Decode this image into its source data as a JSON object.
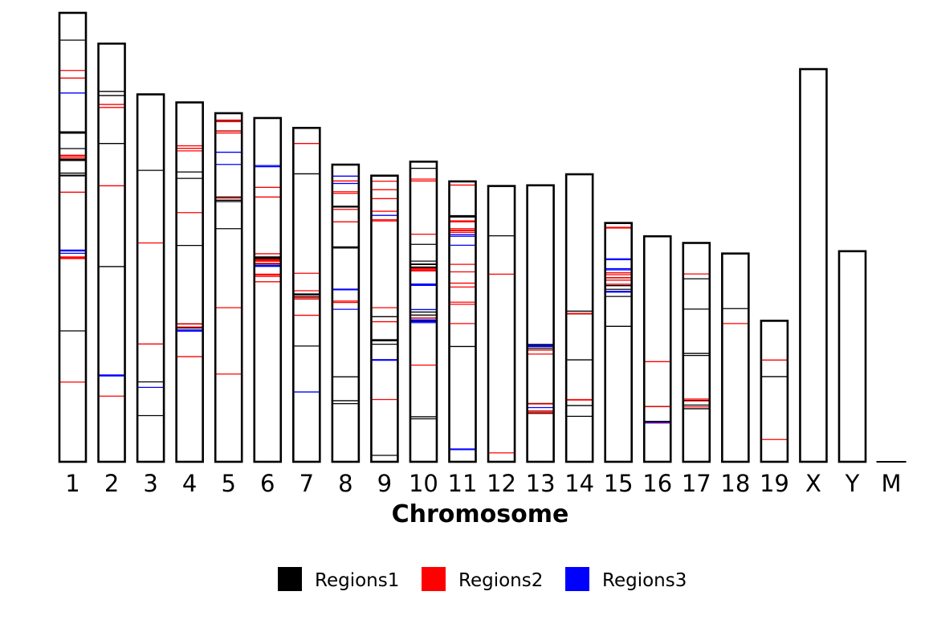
{
  "chart_data": {
    "type": "ideogram",
    "xlabel": "Chromosome",
    "ylabel": "",
    "title": "",
    "categories": [
      "1",
      "2",
      "3",
      "4",
      "5",
      "6",
      "7",
      "8",
      "9",
      "10",
      "11",
      "12",
      "13",
      "14",
      "15",
      "16",
      "17",
      "18",
      "19",
      "X",
      "Y",
      "M"
    ],
    "lengths_mb": [
      195.5,
      182.1,
      160.0,
      156.5,
      151.8,
      149.7,
      145.4,
      129.4,
      124.6,
      130.7,
      122.1,
      120.1,
      120.4,
      125.2,
      104.0,
      98.2,
      95.3,
      90.7,
      61.4,
      171.0,
      91.7,
      0.016
    ],
    "ylim": [
      0,
      195.5
    ],
    "legend_position": "bottom",
    "series": [
      {
        "name": "Regions1",
        "color": "#000000",
        "regions": {
          "1": [
            57,
            124.5,
            124.8,
            125.7,
            131.2,
            131.5,
            131.7,
            136.4,
            143.1,
            143.4,
            143.7,
            183.6
          ],
          "2": [
            85,
            138.6,
            159.5,
            161.3
          ],
          "3": [
            20.1,
            34.8,
            126.9
          ],
          "4": [
            58.3,
            60.1,
            94.2,
            123.4,
            126.2
          ],
          "5": [
            101.5,
            113.3,
            113.9,
            114.9,
            115.3,
            144.1,
            148.6
          ],
          "6": [
            81.4,
            85.6,
            86.2,
            87.4,
            88.3,
            88.7,
            89,
            89.2
          ],
          "7": [
            50.4,
            70.9,
            71.9,
            72.7,
            73.1,
            125.4
          ],
          "8": [
            25.3,
            26.6,
            37,
            93.1,
            93.6,
            110.9,
            111.3
          ],
          "9": [
            2.8,
            51.2,
            52.7,
            53.2,
            63.2
          ],
          "10": [
            18.7,
            19.6,
            61.4,
            62.6,
            63.9,
            65.2,
            84.6,
            84.8,
            85.9,
            86.1,
            87.4,
            94.7,
            127.8
          ],
          "11": [
            50.2,
            106.6,
            106.9,
            107.2
          ],
          "12": [
            98.4
          ],
          "13": [
            21.1,
            22.1,
            25.4,
            49.3,
            50.1,
            50.3,
            50.5,
            50.7,
            50.9,
            51.1
          ],
          "14": [
            19.8,
            24.5,
            44.4,
            64.4,
            65.6
          ],
          "15": [
            59,
            72,
            74.2,
            75.1,
            76.7,
            77.3,
            80.1,
            103.8
          ],
          "16": [
            17.6,
            24.1
          ],
          "17": [
            23.1,
            24.7,
            26.7,
            46.3,
            47.2,
            66.5,
            79.7
          ],
          "18": [
            66.7
          ],
          "19": [
            37.1
          ]
        }
      },
      {
        "name": "Regions2",
        "color": "#ff0000",
        "regions": {
          "1": [
            34.7,
            88.5,
            88.8,
            89.2,
            117.4,
            132.3,
            133.1,
            133.5,
            167.1,
            170.4
          ],
          "2": [
            28.6,
            120.2,
            154.3,
            155.6
          ],
          "3": [
            51.3,
            95.3
          ],
          "4": [
            45.8,
            57.4,
            58.7,
            60,
            108.5,
            135.4,
            136.5,
            137.6
          ],
          "5": [
            38.2,
            67.1,
            114.9,
            143.2,
            144,
            148.1,
            148.8
          ],
          "6": [
            78.4,
            80.7,
            81.3,
            81.7,
            86.4,
            87.4,
            87.8,
            88.1,
            90.6,
            115.3,
            119.5
          ],
          "7": [
            63.8,
            71,
            71.6,
            74.5,
            82.1,
            138.6
          ],
          "8": [
            69.4,
            70,
            104.5,
            109.9,
            116.9,
            117.6,
            122.3
          ],
          "9": [
            27.1,
            61,
            67.1,
            104.9,
            105.4,
            109.1,
            114.6,
            118.5,
            122.2
          ],
          "10": [
            42.1,
            62.6,
            83.1,
            83.5,
            84,
            84.2,
            99.1,
            122.3,
            123.1
          ],
          "11": [
            60.2,
            68.6,
            69.5,
            77.8,
            76.1,
            82.7,
            86,
            99.9,
            100.6,
            100.9,
            101.5,
            104.5,
            104.9,
            120.5
          ],
          "12": [
            3.9,
            81.7
          ],
          "13": [
            21.4,
            22,
            25.2,
            46.9,
            48.6
          ],
          "14": [
            26.9,
            27.1,
            64.5,
            64.6
          ],
          "15": [
            77.3,
            79.1,
            80.2,
            81.5,
            82.3,
            101.8,
            102.1
          ],
          "16": [
            16.9,
            24,
            43.6
          ],
          "17": [
            23.9,
            26.5,
            27.3,
            81.8
          ],
          "18": [
            60.2
          ],
          "19": [
            9.7,
            44.3
          ]
        }
      },
      {
        "name": "Regions3",
        "color": "#0000ff",
        "regions": {
          "1": [
            90.8,
            91.8,
            92.2,
            160.6
          ],
          "2": [
            37.4,
            37.8
          ],
          "3": [
            32.4
          ],
          "4": [
            56.9,
            57.4
          ],
          "5": [
            129.5,
            134.8
          ],
          "6": [
            85.1,
            85.5,
            128.5,
            129
          ],
          "7": [
            30.4
          ],
          "8": [
            66.4,
            74.9,
            75.2,
            121.2,
            124.4
          ],
          "9": [
            44.2,
            44.5,
            107.3
          ],
          "10": [
            60.6,
            61.1,
            61.8,
            66.3,
            76.8,
            77.1,
            77.4
          ],
          "11": [
            5.3,
            5.6,
            94.3,
            98.2,
            98.9
          ],
          "13": [
            23.6,
            50.3,
            50.7
          ],
          "15": [
            73.9,
            74.2,
            83.6,
            84.1,
            88,
            88.4
          ],
          "16": [
            17.1
          ]
        }
      }
    ]
  }
}
